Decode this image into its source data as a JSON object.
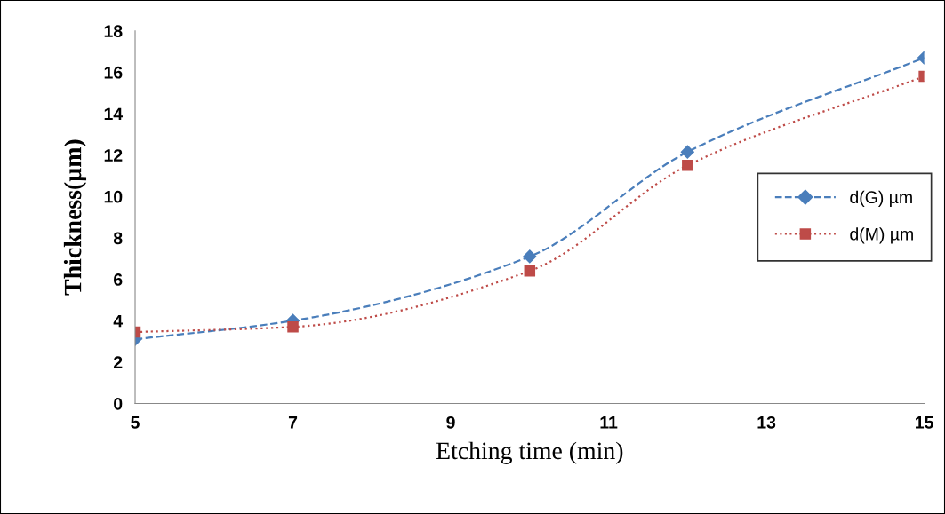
{
  "chart_data": {
    "type": "line",
    "xlabel": "Etching time (min)",
    "ylabel": "Thickness(µm)",
    "x": [
      5,
      7,
      10,
      12,
      15
    ],
    "series": [
      {
        "name": "d(G) µm",
        "color": "#4a7ebb",
        "values": [
          3.1,
          4.0,
          7.1,
          12.15,
          16.7
        ],
        "marker": "diamond",
        "line_style": "dashed"
      },
      {
        "name": "d(M) µm",
        "color": "#be4b48",
        "values": [
          3.45,
          3.7,
          6.4,
          11.5,
          15.8
        ],
        "marker": "square",
        "line_style": "dotted"
      }
    ],
    "xlim": [
      5,
      15
    ],
    "xticks": [
      5,
      7,
      9,
      11,
      13,
      15
    ],
    "ylim": [
      0,
      18
    ],
    "yticks": [
      0,
      2,
      4,
      6,
      8,
      10,
      12,
      14,
      16,
      18
    ],
    "grid": false,
    "legend": "right"
  }
}
